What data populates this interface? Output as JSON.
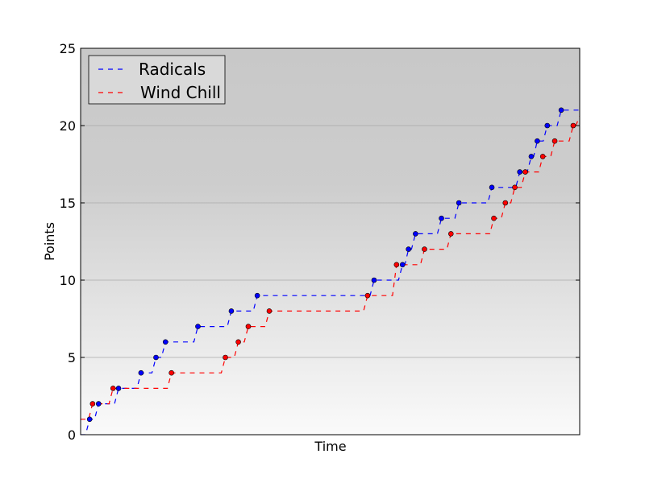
{
  "chart_data": {
    "type": "line",
    "title": "",
    "xlabel": "Time",
    "ylabel": "Points",
    "ylim": [
      0,
      25
    ],
    "yticks": [
      "0",
      "5",
      "10",
      "15",
      "20",
      "25"
    ],
    "xlim": [
      0,
      100
    ],
    "grid": "horizontal",
    "legend_position": "top-left",
    "background": "gradient-gray",
    "series": [
      {
        "name": "Radicals",
        "color": "#0000ff",
        "line_style": "dashed",
        "step": true,
        "x": [
          0,
          1.8,
          3.6,
          7.6,
          12.1,
          15.1,
          17.0,
          23.5,
          30.2,
          35.4,
          58.8,
          64.5,
          65.7,
          67.1,
          72.3,
          75.8,
          82.4,
          88.0,
          90.3,
          91.5,
          93.5,
          96.3,
          100
        ],
        "y": [
          0,
          1,
          2,
          3,
          4,
          5,
          6,
          7,
          8,
          9,
          10,
          11,
          12,
          13,
          14,
          15,
          16,
          17,
          18,
          19,
          20,
          21,
          21
        ]
      },
      {
        "name": "Wind Chill",
        "color": "#ff0000",
        "line_style": "dashed",
        "step": true,
        "x": [
          0,
          2.4,
          6.5,
          18.2,
          29.0,
          31.6,
          33.6,
          37.8,
          57.5,
          63.3,
          68.9,
          74.2,
          82.8,
          85.1,
          87.0,
          89.1,
          92.6,
          95.0,
          98.7,
          100
        ],
        "y": [
          1,
          2,
          3,
          4,
          5,
          6,
          7,
          8,
          9,
          11,
          12,
          13,
          14,
          15,
          16,
          17,
          18,
          19,
          20,
          20.6
        ]
      }
    ]
  }
}
